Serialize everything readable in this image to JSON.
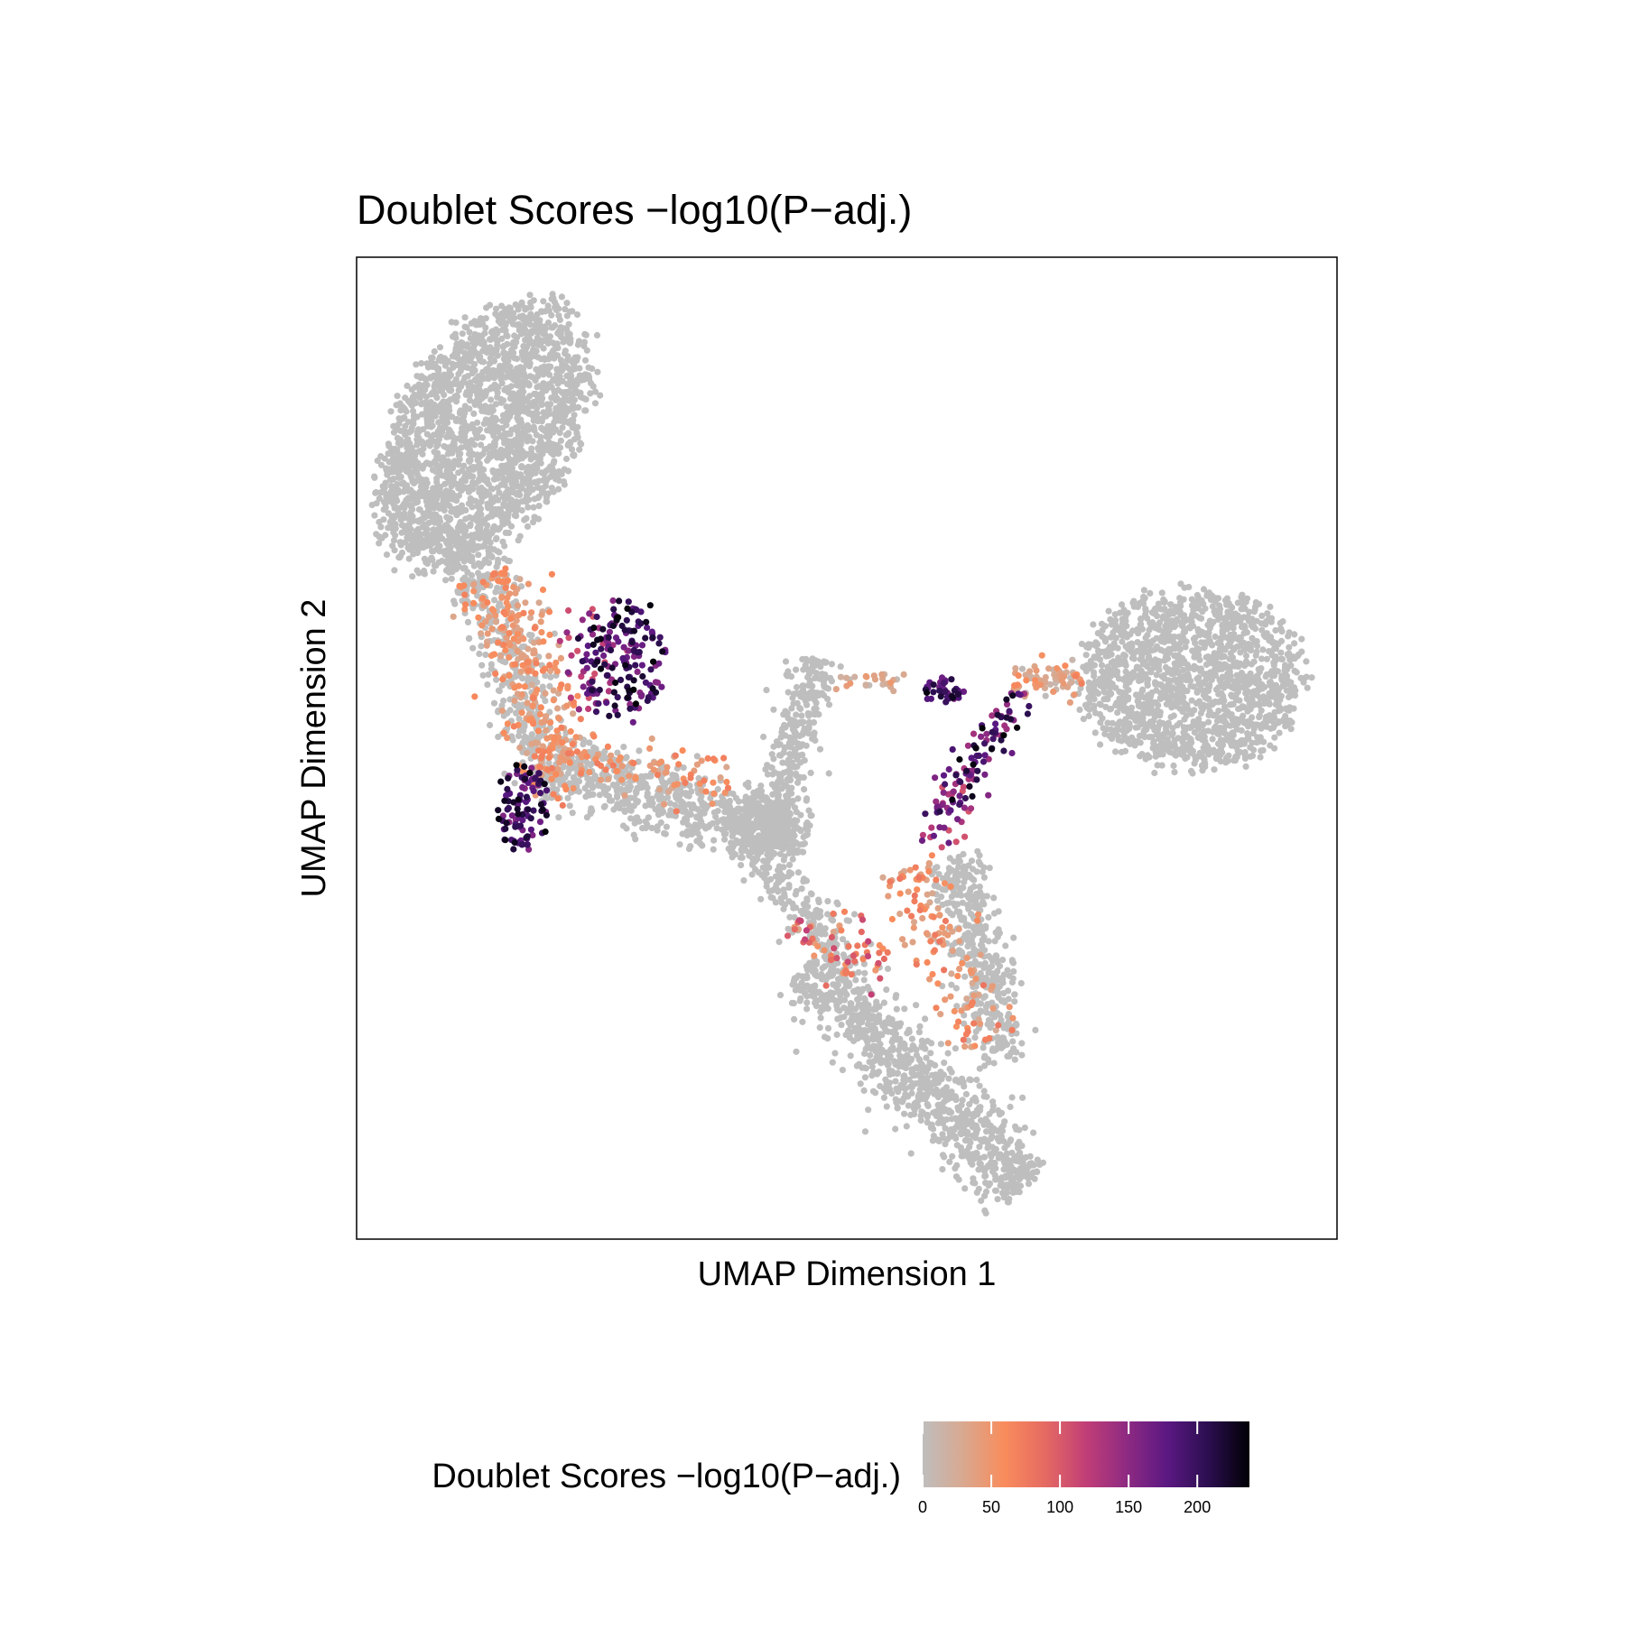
{
  "chart_data": {
    "type": "scatter",
    "title": "Doublet Scores −log10(P−adj.)",
    "xlabel": "UMAP Dimension 1",
    "ylabel": "UMAP Dimension 2",
    "xlim": [
      0,
      100
    ],
    "ylim": [
      0,
      100
    ],
    "x_ticks_shown": false,
    "y_ticks_shown": false,
    "grid": false,
    "point_color_default": "#BEBEBE",
    "legend": {
      "title": "Doublet Scores −log10(P−adj.)",
      "position": "bottom",
      "type": "colorbar",
      "range": [
        0,
        238
      ],
      "ticks": [
        0,
        50,
        100,
        150,
        200
      ],
      "tick_labels": [
        "0",
        "50",
        "100",
        "150",
        "200"
      ],
      "colors": [
        "#BEBEBE",
        "#D9A88F",
        "#F98C5C",
        "#E56A62",
        "#C13E77",
        "#8E2A82",
        "#5A1882",
        "#2B0E4F",
        "#000004"
      ]
    },
    "clusters": [
      {
        "name": "top-left",
        "type": "ellipse",
        "cx": 13,
        "cy": 82,
        "rx": 10,
        "ry": 17,
        "angle": -30,
        "n": 2200,
        "score": [
          0,
          0
        ]
      },
      {
        "name": "right",
        "type": "ellipse",
        "cx": 85,
        "cy": 57,
        "rx": 13,
        "ry": 10,
        "angle": 0,
        "n": 1500,
        "score": [
          0,
          0
        ]
      },
      {
        "name": "left-band",
        "type": "segment",
        "x1": 11,
        "y1": 72,
        "x2": 21,
        "y2": 45,
        "width": 3.5,
        "n": 450,
        "score": [
          0,
          0
        ]
      },
      {
        "name": "left-band-orange",
        "type": "segment",
        "x1": 14,
        "y1": 68,
        "x2": 21,
        "y2": 48,
        "width": 4,
        "n": 260,
        "score": [
          25,
          70
        ]
      },
      {
        "name": "left-bridge",
        "type": "segment",
        "x1": 20,
        "y1": 48,
        "x2": 46,
        "y2": 41,
        "width": 3.5,
        "n": 620,
        "score": [
          0,
          0
        ]
      },
      {
        "name": "left-bridge-orange",
        "type": "segment",
        "x1": 18,
        "y1": 48,
        "x2": 38,
        "y2": 47,
        "width": 3,
        "n": 110,
        "score": [
          25,
          75
        ]
      },
      {
        "name": "mid-stem",
        "type": "segment",
        "x1": 47,
        "y1": 59,
        "x2": 42,
        "y2": 40,
        "width": 2.5,
        "n": 330,
        "score": [
          0,
          0
        ]
      },
      {
        "name": "mid-blob",
        "type": "ellipse",
        "cx": 41,
        "cy": 42,
        "rx": 4,
        "ry": 4,
        "angle": 0,
        "n": 220,
        "score": [
          0,
          0
        ]
      },
      {
        "name": "down-stem",
        "type": "segment",
        "x1": 41,
        "y1": 39,
        "x2": 49,
        "y2": 30,
        "width": 2.5,
        "n": 140,
        "score": [
          0,
          0
        ]
      },
      {
        "name": "bottom-diag",
        "type": "segment",
        "x1": 46,
        "y1": 28,
        "x2": 68,
        "y2": 5,
        "width": 4,
        "n": 950,
        "score": [
          0,
          0
        ]
      },
      {
        "name": "right-stem",
        "type": "segment",
        "x1": 61,
        "y1": 39,
        "x2": 66,
        "y2": 18,
        "width": 3,
        "n": 380,
        "score": [
          0,
          0
        ]
      },
      {
        "name": "right-stem-orange",
        "type": "segment",
        "x1": 56,
        "y1": 38,
        "x2": 64,
        "y2": 20,
        "width": 3.5,
        "n": 130,
        "score": [
          25,
          80
        ]
      },
      {
        "name": "lower-orange",
        "type": "segment",
        "x1": 44,
        "y1": 32,
        "x2": 54,
        "y2": 28,
        "width": 3,
        "n": 60,
        "score": [
          30,
          120
        ]
      },
      {
        "name": "mid-connector",
        "type": "segment",
        "x1": 48,
        "y1": 57,
        "x2": 56,
        "y2": 57,
        "width": 1,
        "n": 25,
        "score": [
          0,
          50
        ]
      },
      {
        "name": "right-connector",
        "type": "segment",
        "x1": 67,
        "y1": 57,
        "x2": 74,
        "y2": 57,
        "width": 2,
        "n": 70,
        "score": [
          0,
          70
        ]
      },
      {
        "name": "black-A",
        "type": "ellipse",
        "cx": 27,
        "cy": 59,
        "rx": 5,
        "ry": 7,
        "angle": 0,
        "n": 160,
        "score": [
          150,
          238
        ]
      },
      {
        "name": "black-A-purple",
        "type": "ellipse",
        "cx": 24,
        "cy": 60,
        "rx": 4,
        "ry": 7,
        "angle": 0,
        "n": 35,
        "score": [
          100,
          170
        ]
      },
      {
        "name": "black-B",
        "type": "ellipse",
        "cx": 17,
        "cy": 44,
        "rx": 3,
        "ry": 5,
        "angle": 0,
        "n": 100,
        "score": [
          150,
          238
        ]
      },
      {
        "name": "black-C",
        "type": "ellipse",
        "cx": 60,
        "cy": 56,
        "rx": 2.5,
        "ry": 1.5,
        "angle": 0,
        "n": 40,
        "score": [
          150,
          238
        ]
      },
      {
        "name": "black-D",
        "type": "segment",
        "x1": 68,
        "y1": 56,
        "x2": 59,
        "y2": 42,
        "width": 2,
        "n": 95,
        "score": [
          130,
          238
        ]
      },
      {
        "name": "black-D-purple",
        "type": "segment",
        "x1": 63,
        "y1": 49,
        "x2": 59,
        "y2": 40,
        "width": 2,
        "n": 30,
        "score": [
          100,
          180
        ]
      }
    ]
  }
}
